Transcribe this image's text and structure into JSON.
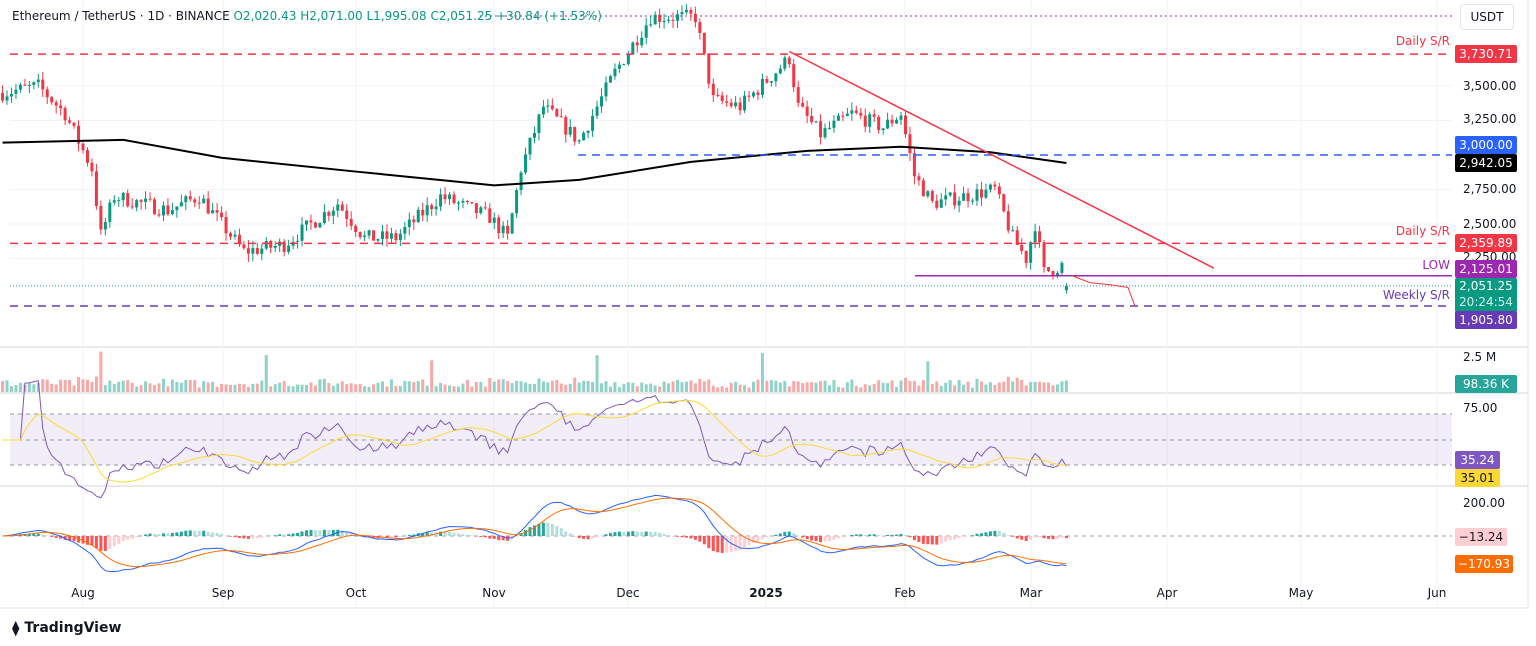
{
  "header": {
    "symbol": "Ethereum / TetherUS · 1D · BINANCE",
    "open": "O2,020.43",
    "high": "H2,071.00",
    "low": "L1,995.08",
    "close": "C2,051.25",
    "change": "+30.84 (+1.53%)"
  },
  "currency": "USDT",
  "branding": "TradingView",
  "colors": {
    "up": "#089981",
    "down": "#f23645",
    "ma": "#000000",
    "trendline": "#f23645",
    "low_line": "#9c27b0",
    "weekly_sr": "#673ab7",
    "blue_level": "#2962ff",
    "rsi": "#7e57c2",
    "rsi_ma": "#fdd835",
    "macd": "#2962ff",
    "signal": "#ff6d00"
  },
  "price_axis": {
    "ticks": [
      "3,500.00",
      "3,250.00",
      "2,750.00",
      "2,500.00",
      "2,250.00"
    ]
  },
  "price_tags": {
    "daily_sr_top": "3,730.71",
    "blue_level": "3,000.00",
    "ma": "2,942.05",
    "daily_sr_bottom": "2,359.89",
    "low": "2,125.01",
    "last": "2,051.25",
    "countdown": "20:24:54",
    "weekly_sr": "1,905.80"
  },
  "annotations": {
    "daily_sr_top": "Daily S/R",
    "daily_sr_bottom": "Daily S/R",
    "low": "LOW",
    "weekly_sr": "Weekly S/R"
  },
  "volume": {
    "tick": "2.5 M",
    "last": "98.36 K"
  },
  "rsi": {
    "tick": "75.00",
    "rsi": "35.24",
    "rsi_ma": "35.01"
  },
  "macd": {
    "tick": "200.00",
    "hist": "−13.24",
    "signal": "−170.93"
  },
  "x_axis": {
    "labels": [
      "Aug",
      "Sep",
      "Oct",
      "Nov",
      "Dec",
      "2025",
      "Feb",
      "Mar",
      "Apr",
      "May",
      "Jun"
    ]
  },
  "chart_data": {
    "type": "candlestick",
    "interval": "1D",
    "price_path": {
      "dates": [
        "2024-07-14",
        "2024-07-22",
        "2024-07-28",
        "2024-08-03",
        "2024-08-05",
        "2024-08-08",
        "2024-08-20",
        "2024-08-27",
        "2024-09-06",
        "2024-09-15",
        "2024-09-27",
        "2024-10-03",
        "2024-10-10",
        "2024-10-20",
        "2024-10-31",
        "2024-11-04",
        "2024-11-07",
        "2024-11-12",
        "2024-11-20",
        "2024-11-28",
        "2024-12-06",
        "2024-12-16",
        "2024-12-20",
        "2024-12-26",
        "2025-01-06",
        "2025-01-08",
        "2025-01-13",
        "2025-01-20",
        "2025-01-27",
        "2025-01-31",
        "2025-02-03",
        "2025-02-07",
        "2025-02-14",
        "2025-02-21",
        "2025-02-25",
        "2025-02-28",
        "2025-03-02",
        "2025-03-04",
        "2025-03-08",
        "2025-03-09"
      ],
      "closes": [
        3450,
        3500,
        3300,
        2900,
        2420,
        2700,
        2600,
        2700,
        2300,
        2350,
        2650,
        2400,
        2400,
        2700,
        2550,
        2400,
        2900,
        3350,
        3100,
        3600,
        4000,
        4000,
        3400,
        3350,
        3700,
        3350,
        3150,
        3300,
        3200,
        3300,
        2850,
        2650,
        2700,
        2750,
        2400,
        2250,
        2500,
        2150,
        2200,
        2051.25
      ]
    },
    "levels": [
      {
        "label": "Daily S/R",
        "value": 3730.71
      },
      {
        "label": "Daily S/R",
        "value": 2359.89
      },
      {
        "label": "LOW",
        "value": 2125.01
      },
      {
        "label": "Weekly S/R",
        "value": 1905.8
      },
      {
        "value": 3000.0
      }
    ],
    "moving_average_200_last": 2942.05,
    "trendline": {
      "from": {
        "date": "2025-01-06",
        "price": 3750
      },
      "to": {
        "date": "2025-04-11",
        "price": 2180
      }
    },
    "ylim": [
      1750,
      4100
    ],
    "x_ticks": [
      "Aug",
      "Sep",
      "Oct",
      "Nov",
      "Dec",
      "2025",
      "Feb",
      "Mar",
      "Apr",
      "May",
      "Jun"
    ],
    "grid": true
  }
}
